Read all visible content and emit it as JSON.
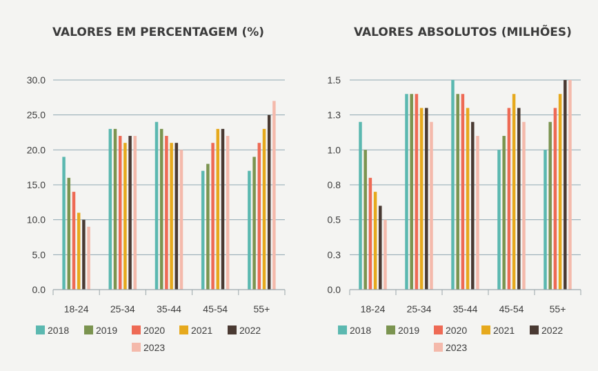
{
  "colors": {
    "2018": "#5bb8b0",
    "2019": "#7b9450",
    "2020": "#ee6a55",
    "2021": "#e6a91d",
    "2022": "#4a3a33",
    "2023": "#f4b9ab",
    "grid": "#8ea7b1",
    "axis": "#9aa6ab"
  },
  "chart_data": [
    {
      "type": "bar",
      "title": "VALORES EM PERCENTAGEM (%)",
      "categories": [
        "18-24",
        "25-34",
        "35-44",
        "45-54",
        "55+"
      ],
      "ylim": [
        0,
        30
      ],
      "yticks": [
        "0.0",
        "5.0",
        "10.0",
        "15.0",
        "20.0",
        "25.0",
        "30.0"
      ],
      "grid": true,
      "legend_position": "bottom",
      "series": [
        {
          "name": "2018",
          "values": [
            19,
            23,
            24,
            17,
            17
          ]
        },
        {
          "name": "2019",
          "values": [
            16,
            23,
            23,
            18,
            19
          ]
        },
        {
          "name": "2020",
          "values": [
            14,
            22,
            22,
            21,
            21
          ]
        },
        {
          "name": "2021",
          "values": [
            11,
            21,
            21,
            23,
            23
          ]
        },
        {
          "name": "2022",
          "values": [
            10,
            22,
            21,
            23,
            25
          ]
        },
        {
          "name": "2023",
          "values": [
            9,
            22,
            20,
            22,
            27
          ]
        }
      ]
    },
    {
      "type": "bar",
      "title": "VALORES ABSOLUTOS (MILHÕES)",
      "categories": [
        "18-24",
        "25-34",
        "35-44",
        "45-54",
        "55+"
      ],
      "ylim": [
        0,
        1.5
      ],
      "yticks": [
        "0.0",
        "0.3",
        "0.5",
        "0.8",
        "1.0",
        "1.3",
        "1.5"
      ],
      "grid": true,
      "legend_position": "bottom",
      "series": [
        {
          "name": "2018",
          "values": [
            1.2,
            1.4,
            1.5,
            1.0,
            1.0
          ]
        },
        {
          "name": "2019",
          "values": [
            1.0,
            1.4,
            1.4,
            1.1,
            1.2
          ]
        },
        {
          "name": "2020",
          "values": [
            0.8,
            1.4,
            1.4,
            1.3,
            1.3
          ]
        },
        {
          "name": "2021",
          "values": [
            0.7,
            1.3,
            1.3,
            1.4,
            1.4
          ]
        },
        {
          "name": "2022",
          "values": [
            0.6,
            1.3,
            1.2,
            1.3,
            1.5
          ]
        },
        {
          "name": "2023",
          "values": [
            0.5,
            1.2,
            1.1,
            1.2,
            1.5
          ]
        }
      ]
    }
  ]
}
